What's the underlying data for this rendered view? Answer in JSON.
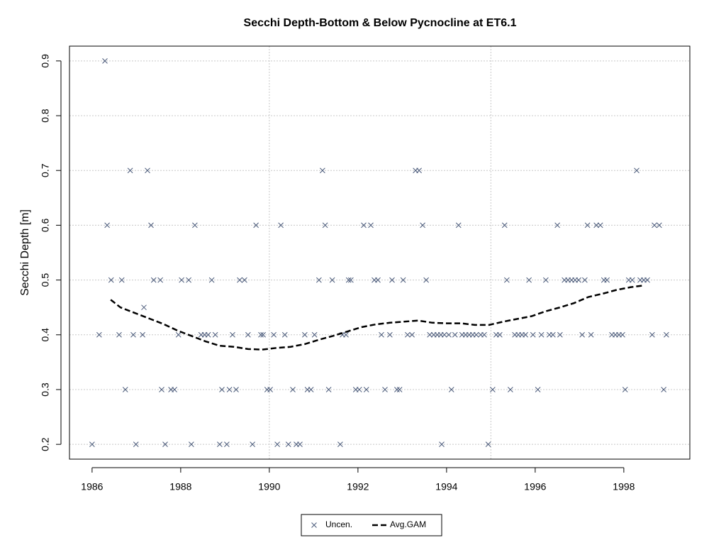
{
  "chart_data": {
    "type": "scatter",
    "title": "Secchi Depth-Bottom & Below Pycnocline at ET6.1",
    "y_label": "Secchi Depth [m]",
    "xlim": [
      1985.49,
      1999.49
    ],
    "ylim": [
      0.173,
      0.927
    ],
    "xticks": [
      1986,
      1988,
      1990,
      1992,
      1994,
      1996,
      1998
    ],
    "yticks": [
      0.2,
      0.3,
      0.4,
      0.5,
      0.6,
      0.7,
      0.8,
      0.9
    ],
    "xgrid": [
      1990,
      1995
    ],
    "ygrid": true,
    "legend": "bottom",
    "series": [
      {
        "name": "Uncen.",
        "type": "scatter",
        "color": "#4a5a7a",
        "x": [
          1986.0,
          1986.16,
          1986.29,
          1986.34,
          1986.43,
          1986.61,
          1986.67,
          1986.75,
          1986.86,
          1986.93,
          1986.99,
          1987.14,
          1987.17,
          1987.25,
          1987.33,
          1987.39,
          1987.54,
          1987.57,
          1987.65,
          1987.78,
          1987.86,
          1987.95,
          1988.02,
          1988.18,
          1988.24,
          1988.32,
          1988.46,
          1988.54,
          1988.62,
          1988.7,
          1988.78,
          1988.88,
          1988.93,
          1989.04,
          1989.1,
          1989.17,
          1989.25,
          1989.33,
          1989.44,
          1989.52,
          1989.62,
          1989.7,
          1989.81,
          1989.86,
          1989.95,
          1990.02,
          1990.1,
          1990.18,
          1990.26,
          1990.35,
          1990.43,
          1990.53,
          1990.61,
          1990.69,
          1990.8,
          1990.86,
          1990.94,
          1991.02,
          1991.12,
          1991.2,
          1991.26,
          1991.34,
          1991.42,
          1991.6,
          1991.65,
          1991.73,
          1991.79,
          1991.84,
          1991.95,
          1992.03,
          1992.13,
          1992.19,
          1992.29,
          1992.37,
          1992.45,
          1992.53,
          1992.61,
          1992.72,
          1992.77,
          1992.88,
          1992.94,
          1993.02,
          1993.12,
          1993.22,
          1993.3,
          1993.38,
          1993.46,
          1993.54,
          1993.62,
          1993.71,
          1993.79,
          1993.87,
          1993.89,
          1993.95,
          1994.05,
          1994.11,
          1994.19,
          1994.27,
          1994.35,
          1994.43,
          1994.51,
          1994.59,
          1994.67,
          1994.77,
          1994.85,
          1994.94,
          1995.04,
          1995.12,
          1995.2,
          1995.31,
          1995.36,
          1995.44,
          1995.54,
          1995.62,
          1995.7,
          1995.78,
          1995.86,
          1995.95,
          1996.06,
          1996.14,
          1996.24,
          1996.32,
          1996.4,
          1996.5,
          1996.56,
          1996.66,
          1996.74,
          1996.82,
          1996.9,
          1996.98,
          1997.06,
          1997.12,
          1997.18,
          1997.26,
          1997.38,
          1997.47,
          1997.55,
          1997.62,
          1997.73,
          1997.81,
          1997.89,
          1997.97,
          1998.03,
          1998.11,
          1998.19,
          1998.29,
          1998.37,
          1998.45,
          1998.53,
          1998.64,
          1998.69,
          1998.8,
          1998.9,
          1998.96
        ],
        "values": [
          0.2,
          0.4,
          0.9,
          0.6,
          0.5,
          0.4,
          0.5,
          0.3,
          0.7,
          0.4,
          0.2,
          0.4,
          0.45,
          0.7,
          0.6,
          0.5,
          0.5,
          0.3,
          0.2,
          0.3,
          0.3,
          0.4,
          0.5,
          0.5,
          0.2,
          0.6,
          0.4,
          0.4,
          0.4,
          0.5,
          0.4,
          0.2,
          0.3,
          0.2,
          0.3,
          0.4,
          0.3,
          0.5,
          0.5,
          0.4,
          0.2,
          0.6,
          0.4,
          0.4,
          0.3,
          0.3,
          0.4,
          0.2,
          0.6,
          0.4,
          0.2,
          0.3,
          0.2,
          0.2,
          0.4,
          0.3,
          0.3,
          0.4,
          0.5,
          0.7,
          0.6,
          0.3,
          0.5,
          0.2,
          0.4,
          0.4,
          0.5,
          0.5,
          0.3,
          0.3,
          0.6,
          0.3,
          0.6,
          0.5,
          0.5,
          0.4,
          0.3,
          0.4,
          0.5,
          0.3,
          0.3,
          0.5,
          0.4,
          0.4,
          0.7,
          0.7,
          0.6,
          0.5,
          0.4,
          0.4,
          0.4,
          0.4,
          0.2,
          0.4,
          0.4,
          0.3,
          0.4,
          0.6,
          0.4,
          0.4,
          0.4,
          0.4,
          0.4,
          0.4,
          0.4,
          0.2,
          0.3,
          0.4,
          0.4,
          0.6,
          0.5,
          0.3,
          0.4,
          0.4,
          0.4,
          0.4,
          0.5,
          0.4,
          0.3,
          0.4,
          0.5,
          0.4,
          0.4,
          0.6,
          0.4,
          0.5,
          0.5,
          0.5,
          0.5,
          0.5,
          0.4,
          0.5,
          0.6,
          0.4,
          0.6,
          0.6,
          0.5,
          0.5,
          0.4,
          0.4,
          0.4,
          0.4,
          0.3,
          0.5,
          0.5,
          0.7,
          0.5,
          0.5,
          0.5,
          0.4,
          0.6,
          0.6,
          0.3,
          0.4
        ]
      },
      {
        "name": "Avg.GAM",
        "type": "line",
        "dashed": true,
        "color": "#000000",
        "x": [
          1986.42,
          1986.64,
          1986.96,
          1987.28,
          1987.6,
          1987.92,
          1988.24,
          1988.56,
          1988.88,
          1989.2,
          1989.52,
          1989.84,
          1990.16,
          1990.48,
          1990.8,
          1991.12,
          1991.44,
          1991.76,
          1992.08,
          1992.4,
          1992.72,
          1993.04,
          1993.36,
          1993.68,
          1994.0,
          1994.32,
          1994.64,
          1994.96,
          1995.28,
          1995.6,
          1995.92,
          1996.24,
          1996.56,
          1996.88,
          1997.2,
          1997.52,
          1997.84,
          1998.16,
          1998.45
        ],
        "values": [
          0.464,
          0.45,
          0.44,
          0.43,
          0.42,
          0.408,
          0.398,
          0.388,
          0.38,
          0.378,
          0.374,
          0.373,
          0.376,
          0.378,
          0.383,
          0.391,
          0.398,
          0.406,
          0.414,
          0.419,
          0.422,
          0.424,
          0.426,
          0.422,
          0.421,
          0.421,
          0.418,
          0.418,
          0.424,
          0.429,
          0.434,
          0.443,
          0.45,
          0.458,
          0.469,
          0.475,
          0.482,
          0.487,
          0.49
        ]
      }
    ]
  }
}
